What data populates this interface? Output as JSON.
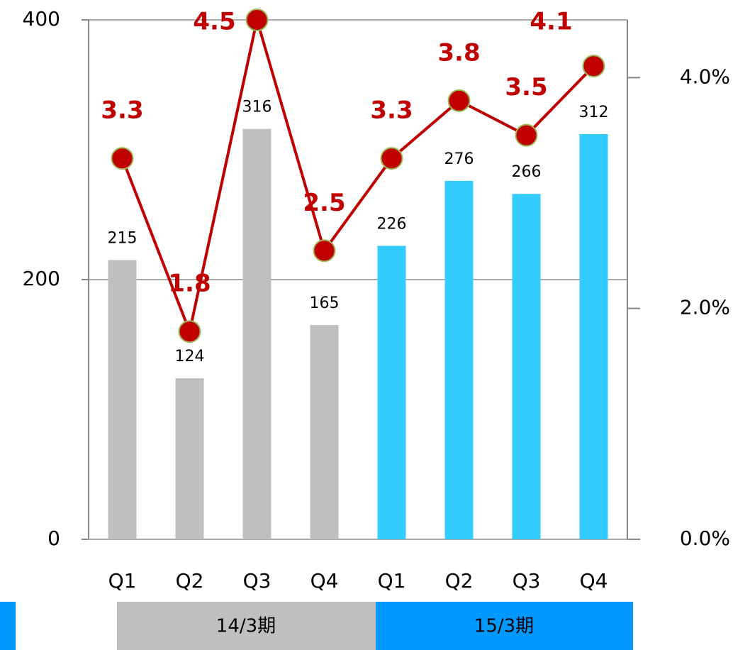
{
  "chart_data": {
    "type": "bar-line",
    "categories": [
      "Q1",
      "Q2",
      "Q3",
      "Q4",
      "Q1",
      "Q2",
      "Q3",
      "Q4"
    ],
    "groups": [
      {
        "label": "14/3期"
      },
      {
        "label": "15/3期"
      }
    ],
    "series": [
      {
        "type": "bar",
        "colors": [
          "#bfbfbf",
          "#bfbfbf",
          "#bfbfbf",
          "#bfbfbf",
          "#33ccff",
          "#33ccff",
          "#33ccff",
          "#33ccff"
        ],
        "values": [
          215,
          124,
          316,
          165,
          226,
          276,
          266,
          312
        ]
      },
      {
        "type": "line",
        "axis": "y2",
        "color": "#c00000",
        "marker_edge": "#9bbb59",
        "values": [
          3.3,
          1.8,
          4.5,
          2.5,
          3.3,
          3.8,
          3.5,
          4.1
        ]
      }
    ],
    "ylim": [
      0,
      400
    ],
    "yticks": [
      0,
      200,
      400
    ],
    "y2lim": [
      0,
      4.5
    ],
    "y2ticks": [
      {
        "value": 0,
        "label": "0.0%"
      },
      {
        "value": 2,
        "label": "2.0%"
      },
      {
        "value": 4,
        "label": "4.0%"
      }
    ],
    "grid": true
  }
}
